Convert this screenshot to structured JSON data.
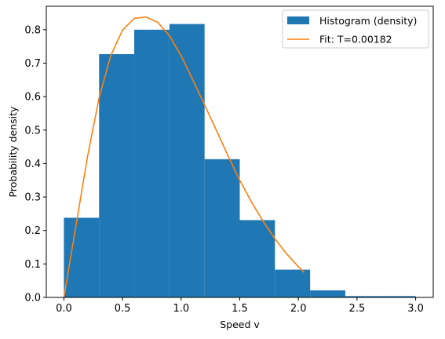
{
  "chart_data": {
    "type": "bar",
    "xlabel": "Speed v",
    "ylabel": "Probability density",
    "xlim": [
      -0.15,
      3.15
    ],
    "ylim": [
      0,
      0.87
    ],
    "xticks": [
      0.0,
      0.5,
      1.0,
      1.5,
      2.0,
      2.5,
      3.0
    ],
    "xtick_labels": [
      "0.0",
      "0.5",
      "1.0",
      "1.5",
      "2.0",
      "2.5",
      "3.0"
    ],
    "yticks": [
      0.0,
      0.1,
      0.2,
      0.3,
      0.4,
      0.5,
      0.6,
      0.7,
      0.8
    ],
    "ytick_labels": [
      "0.0",
      "0.1",
      "0.2",
      "0.3",
      "0.4",
      "0.5",
      "0.6",
      "0.7",
      "0.8"
    ],
    "grid": false,
    "legend_position": "top-right",
    "series": [
      {
        "name": "Histogram (density)",
        "kind": "histogram",
        "color": "#1f77b4",
        "bin_edges": [
          0.0,
          0.3,
          0.6,
          0.9,
          1.2,
          1.5,
          1.8,
          2.1,
          2.4,
          2.7,
          3.0
        ],
        "values": [
          0.238,
          0.727,
          0.8,
          0.817,
          0.413,
          0.231,
          0.083,
          0.021,
          0.004,
          0.004
        ]
      },
      {
        "name": "Fit: T=0.00182",
        "kind": "line",
        "color": "#ff7f0e",
        "x": [
          0.0,
          0.1,
          0.2,
          0.3,
          0.4,
          0.5,
          0.6,
          0.7,
          0.8,
          0.9,
          1.0,
          1.1,
          1.2,
          1.3,
          1.4,
          1.5,
          1.6,
          1.7,
          1.8,
          1.9,
          2.0,
          2.05
        ],
        "y": [
          0.0,
          0.208,
          0.418,
          0.596,
          0.723,
          0.799,
          0.834,
          0.838,
          0.822,
          0.782,
          0.722,
          0.65,
          0.575,
          0.5,
          0.423,
          0.35,
          0.285,
          0.227,
          0.175,
          0.13,
          0.092,
          0.074
        ]
      }
    ]
  }
}
